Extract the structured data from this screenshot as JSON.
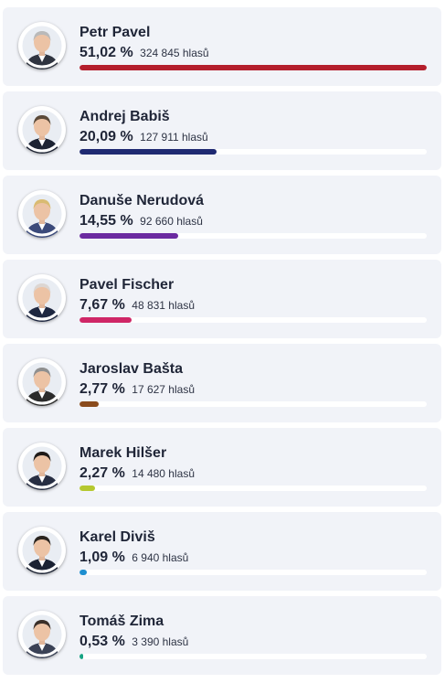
{
  "candidates": [
    {
      "name": "Petr Pavel",
      "percent": "51,02 %",
      "votes": "324 845 hlasů",
      "share": 51.02,
      "color": "#b41e2c",
      "avatar": "portrait-petr-pavel",
      "hair": "#b9b9b9",
      "suit": "#2f3440"
    },
    {
      "name": "Andrej Babiš",
      "percent": "20,09 %",
      "votes": "127 911 hlasů",
      "share": 20.09,
      "color": "#1f2a72",
      "avatar": "portrait-andrej-babis",
      "hair": "#5b4a3a",
      "suit": "#1d2333"
    },
    {
      "name": "Danuše Nerudová",
      "percent": "14,55 %",
      "votes": "92 660 hlasů",
      "share": 14.55,
      "color": "#6b2aa0",
      "avatar": "portrait-danuse-nerudova",
      "hair": "#d9bb72",
      "suit": "#3b4a7a"
    },
    {
      "name": "Pavel Fischer",
      "percent": "7,67 %",
      "votes": "48 831 hlasů",
      "share": 7.67,
      "color": "#cf2666",
      "avatar": "portrait-pavel-fischer",
      "hair": "#dcd6d2",
      "suit": "#1e2740"
    },
    {
      "name": "Jaroslav Bašta",
      "percent": "2,77 %",
      "votes": "17 627 hlasů",
      "share": 2.77,
      "color": "#8a4b1c",
      "avatar": "portrait-jaroslav-basta",
      "hair": "#8f8f8f",
      "suit": "#2b2b2b"
    },
    {
      "name": "Marek Hilšer",
      "percent": "2,27 %",
      "votes": "14 480 hlasů",
      "share": 2.27,
      "color": "#b5c82f",
      "avatar": "portrait-marek-hilser",
      "hair": "#1e1a18",
      "suit": "#272e42"
    },
    {
      "name": "Karel Diviš",
      "percent": "1,09 %",
      "votes": "6 940 hlasů",
      "share": 1.09,
      "color": "#1e8fd0",
      "avatar": "portrait-karel-divis",
      "hair": "#2a241f",
      "suit": "#1b2233"
    },
    {
      "name": "Tomáš Zima",
      "percent": "0,53 %",
      "votes": "3 390 hlasů",
      "share": 0.53,
      "color": "#16a383",
      "avatar": "portrait-tomas-zima",
      "hair": "#3a2f29",
      "suit": "#3a4256"
    }
  ]
}
